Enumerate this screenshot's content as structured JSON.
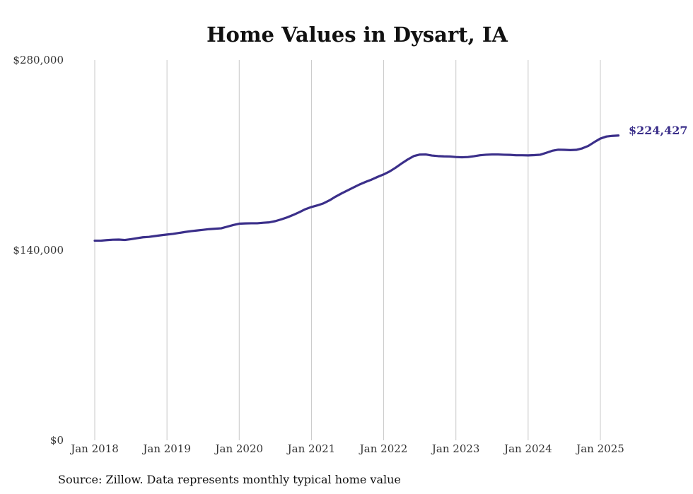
{
  "chart_data": {
    "type": "line",
    "title": "Home Values in Dysart, IA",
    "source_note": "Source: Zillow. Data represents monthly typical home value",
    "ylim": [
      0,
      280000
    ],
    "y_ticks": [
      {
        "value": 0,
        "label": "$0"
      },
      {
        "value": 140000,
        "label": "$140,000"
      },
      {
        "value": 280000,
        "label": "$280,000"
      }
    ],
    "x_ticks": [
      {
        "value": "2018-01",
        "label": "Jan 2018"
      },
      {
        "value": "2019-01",
        "label": "Jan 2019"
      },
      {
        "value": "2020-01",
        "label": "Jan 2020"
      },
      {
        "value": "2021-01",
        "label": "Jan 2021"
      },
      {
        "value": "2022-01",
        "label": "Jan 2022"
      },
      {
        "value": "2023-01",
        "label": "Jan 2023"
      },
      {
        "value": "2024-01",
        "label": "Jan 2024"
      },
      {
        "value": "2025-01",
        "label": "Jan 2025"
      }
    ],
    "grid": "vertical",
    "colors": {
      "line": "#3b2f8a",
      "grid": "#c8c8c8",
      "text": "#333333",
      "title": "#111111"
    },
    "last_value_label": "$224,427",
    "series": [
      {
        "x": [
          "2018-01",
          "2018-02",
          "2018-03",
          "2018-04",
          "2018-05",
          "2018-06",
          "2018-07",
          "2018-08",
          "2018-09",
          "2018-10",
          "2018-11",
          "2018-12",
          "2019-01",
          "2019-02",
          "2019-03",
          "2019-04",
          "2019-05",
          "2019-06",
          "2019-07",
          "2019-08",
          "2019-09",
          "2019-10",
          "2019-11",
          "2019-12",
          "2020-01",
          "2020-02",
          "2020-03",
          "2020-04",
          "2020-05",
          "2020-06",
          "2020-07",
          "2020-08",
          "2020-09",
          "2020-10",
          "2020-11",
          "2020-12",
          "2021-01",
          "2021-02",
          "2021-03",
          "2021-04",
          "2021-05",
          "2021-06",
          "2021-07",
          "2021-08",
          "2021-09",
          "2021-10",
          "2021-11",
          "2021-12",
          "2022-01",
          "2022-02",
          "2022-03",
          "2022-04",
          "2022-05",
          "2022-06",
          "2022-07",
          "2022-08",
          "2022-09",
          "2022-10",
          "2022-11",
          "2022-12",
          "2023-01",
          "2023-02",
          "2023-03",
          "2023-04",
          "2023-05",
          "2023-06",
          "2023-07",
          "2023-08",
          "2023-09",
          "2023-10",
          "2023-11",
          "2023-12",
          "2024-01",
          "2024-02",
          "2024-03",
          "2024-04",
          "2024-05",
          "2024-06",
          "2024-07",
          "2024-08",
          "2024-09",
          "2024-10",
          "2024-11",
          "2024-12",
          "2025-01",
          "2025-02",
          "2025-03",
          "2025-04"
        ],
        "values": [
          147000,
          147000,
          147400,
          147700,
          147800,
          147500,
          148100,
          148800,
          149500,
          149800,
          150400,
          151000,
          151500,
          152000,
          152700,
          153400,
          154000,
          154500,
          155000,
          155500,
          155800,
          156100,
          157300,
          158500,
          159500,
          159700,
          159800,
          159800,
          160200,
          160500,
          161400,
          162700,
          164200,
          166000,
          168000,
          170200,
          171800,
          173000,
          174500,
          176700,
          179400,
          181800,
          184000,
          186200,
          188400,
          190300,
          192000,
          194000,
          195800,
          198000,
          200800,
          203900,
          206800,
          209300,
          210400,
          210500,
          209700,
          209300,
          209100,
          209000,
          208600,
          208400,
          208600,
          209200,
          209900,
          210300,
          210500,
          210500,
          210300,
          210200,
          209900,
          209900,
          209800,
          210000,
          210300,
          211700,
          213200,
          214000,
          213900,
          213700,
          213900,
          215000,
          216800,
          219600,
          222200,
          223700,
          224200,
          224427
        ]
      }
    ]
  }
}
